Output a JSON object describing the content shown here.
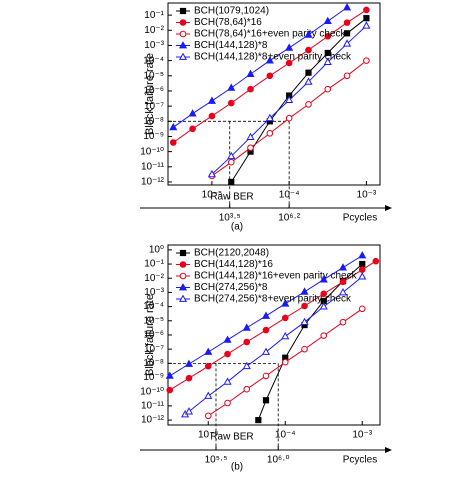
{
  "chart_data": [
    {
      "type": "line",
      "caption": "(a)",
      "ylabel": "Block failure rate",
      "xlabel": "Raw BER",
      "x2label": "Pcycles",
      "log_x": true,
      "log_y": true,
      "xlim": [
        2.7e-06,
        0.0015
      ],
      "ylim": [
        6.3e-13,
        0.63
      ],
      "xticks": [
        {
          "value": 1e-05,
          "label": "10⁻⁵"
        },
        {
          "value": 0.0001,
          "label": "10⁻⁴"
        },
        {
          "value": 0.001,
          "label": "10⁻³"
        }
      ],
      "yticks": [
        {
          "value": 0.1,
          "label": "10⁻¹"
        },
        {
          "value": 0.01,
          "label": "10⁻²"
        },
        {
          "value": 0.001,
          "label": "10⁻³"
        },
        {
          "value": 0.0001,
          "label": "10⁻⁴"
        },
        {
          "value": 1e-05,
          "label": "10⁻⁵"
        },
        {
          "value": 1e-06,
          "label": "10⁻⁶"
        },
        {
          "value": 1e-07,
          "label": "10⁻⁷"
        },
        {
          "value": 1e-08,
          "label": "10⁻⁸"
        },
        {
          "value": 1e-09,
          "label": "10⁻⁹"
        },
        {
          "value": 1e-10,
          "label": "10⁻¹⁰"
        },
        {
          "value": 1e-11,
          "label": "10⁻¹¹"
        },
        {
          "value": 1e-12,
          "label": "10⁻¹²"
        }
      ],
      "x2ticks": [
        {
          "value": 3162,
          "label": "10³·⁵"
        },
        {
          "value": 1584893,
          "label": "10⁶·²"
        }
      ],
      "reference_lines": {
        "y": 1e-08,
        "x": [
          1.7e-05,
          0.0001
        ]
      },
      "legend": "upper left",
      "series": [
        {
          "name": "BCH(1079,1024)",
          "color": "#000000",
          "marker": "square",
          "filled": true,
          "x": [
            1.78e-05,
            3.16e-05,
            5.62e-05,
            0.0001,
            0.000178,
            0.000316,
            0.000562,
            0.001
          ],
          "values": [
            1e-12,
            1e-10,
            1e-08,
            5e-07,
            1.6e-05,
            0.00032,
            0.0063,
            0.063
          ]
        },
        {
          "name": "BCH(78,64)*16",
          "color": "#e8001c",
          "marker": "circle",
          "filled": true,
          "x": [
            3.16e-06,
            5.62e-06,
            1e-05,
            1.78e-05,
            3.16e-05,
            5.62e-05,
            0.0001,
            0.000178,
            0.000316,
            0.000562,
            0.001
          ],
          "values": [
            4e-10,
            3.2e-09,
            2.2e-08,
            1.6e-07,
            1.3e-06,
            1e-05,
            7e-05,
            0.0005,
            0.004,
            0.032,
            0.22
          ]
        },
        {
          "name": "BCH(78,64)*16+even parity check",
          "color": "#e8001c",
          "marker": "circle",
          "filled": false,
          "x": [
            1e-05,
            1.78e-05,
            3.16e-05,
            5.62e-05,
            0.0001,
            0.000178,
            0.000316,
            0.000562,
            0.001
          ],
          "values": [
            2.5e-12,
            2e-11,
            1.8e-10,
            1.6e-09,
            1.6e-08,
            1.3e-07,
            1.3e-06,
            1e-05,
            0.0001
          ]
        },
        {
          "name": "BCH(144,128)*8",
          "color": "#1a1aff",
          "marker": "triangle",
          "filled": true,
          "x": [
            3.16e-06,
            5.62e-06,
            1e-05,
            1.78e-05,
            3.16e-05,
            5.62e-05,
            0.0001,
            0.000178,
            0.000316,
            0.000562
          ],
          "values": [
            4e-09,
            3.2e-08,
            2.2e-07,
            1.6e-06,
            1.3e-05,
            0.0001,
            0.0007,
            0.005,
            0.04,
            0.32
          ]
        },
        {
          "name": "BCH(144,128)*8+even parity check",
          "color": "#1a1aff",
          "marker": "triangle",
          "filled": false,
          "x": [
            1e-05,
            1.78e-05,
            3.16e-05,
            5.62e-05,
            0.0001,
            0.000178,
            0.000316,
            0.000562,
            0.001
          ],
          "values": [
            3.2e-12,
            5e-11,
            9e-10,
            1.6e-08,
            2.5e-07,
            4e-06,
            8e-05,
            0.0013,
            0.02
          ]
        }
      ]
    },
    {
      "type": "line",
      "caption": "(b)",
      "ylabel": "Block failure rate",
      "xlabel": "Raw BER",
      "x2label": "Pcycles",
      "log_x": true,
      "log_y": true,
      "xlim": [
        3e-06,
        0.0017
      ],
      "ylim": [
        4.5e-13,
        2.2
      ],
      "xticks": [
        {
          "value": 1e-05,
          "label": "10⁻⁵"
        },
        {
          "value": 0.0001,
          "label": "10⁻⁴"
        },
        {
          "value": 0.001,
          "label": "10⁻³"
        }
      ],
      "yticks": [
        {
          "value": 1,
          "label": "10⁰"
        },
        {
          "value": 0.1,
          "label": "10⁻¹"
        },
        {
          "value": 0.01,
          "label": "10⁻²"
        },
        {
          "value": 0.001,
          "label": "10⁻³"
        },
        {
          "value": 0.0001,
          "label": "10⁻⁴"
        },
        {
          "value": 1e-05,
          "label": "10⁻⁵"
        },
        {
          "value": 1e-06,
          "label": "10⁻⁶"
        },
        {
          "value": 1e-07,
          "label": "10⁻⁷"
        },
        {
          "value": 1e-08,
          "label": "10⁻⁸"
        },
        {
          "value": 1e-09,
          "label": "10⁻⁹"
        },
        {
          "value": 1e-10,
          "label": "10⁻¹⁰"
        },
        {
          "value": 1e-11,
          "label": "10⁻¹¹"
        },
        {
          "value": 1e-12,
          "label": "10⁻¹²"
        }
      ],
      "x2ticks": [
        {
          "value": 316228,
          "label": "10⁵·⁵"
        },
        {
          "value": 1000000,
          "label": "10⁶·⁰"
        }
      ],
      "reference_lines": {
        "y": 1e-08,
        "x": [
          1.26e-05,
          8.1e-05
        ]
      },
      "legend": "upper left",
      "series": [
        {
          "name": "BCH(2120,2048)",
          "color": "#000000",
          "marker": "square",
          "filled": true,
          "x": [
            4.47e-05,
            5.62e-05,
            0.0001,
            0.000178,
            0.000316,
            0.000562,
            0.001
          ],
          "values": [
            1e-12,
            2.5e-11,
            2.5e-08,
            5e-06,
            0.00025,
            0.0063,
            0.1
          ]
        },
        {
          "name": "BCH(144,128)*16",
          "color": "#e8001c",
          "marker": "circle",
          "filled": true,
          "x": [
            3.16e-06,
            5.62e-06,
            1e-05,
            1.78e-05,
            3.16e-05,
            5.62e-05,
            0.0001,
            0.000178,
            0.000316,
            0.000562,
            0.001,
            0.0015
          ],
          "values": [
            1.3e-10,
            9e-10,
            6.3e-09,
            4.5e-08,
            3.2e-07,
            2.2e-06,
            1.6e-05,
            0.00011,
            0.0008,
            0.0056,
            0.04,
            0.16
          ]
        },
        {
          "name": "BCH(144,128)*16+even parity check",
          "color": "#e8001c",
          "marker": "circle",
          "filled": false,
          "x": [
            1e-05,
            1.78e-05,
            3.16e-05,
            5.62e-05,
            0.0001,
            0.000178,
            0.000316,
            0.000562,
            0.001
          ],
          "values": [
            2e-12,
            1.6e-11,
            1.5e-10,
            1.3e-09,
            1.2e-08,
            1e-07,
            9e-07,
            8e-06,
            7e-05
          ]
        },
        {
          "name": "BCH(274,256)*8",
          "color": "#1a1aff",
          "marker": "triangle",
          "filled": true,
          "x": [
            3.16e-06,
            5.62e-06,
            1e-05,
            1.78e-05,
            3.16e-05,
            5.62e-05,
            0.0001,
            0.000178,
            0.000316,
            0.000562,
            0.001
          ],
          "values": [
            1.3e-09,
            9e-09,
            6.3e-08,
            4.5e-07,
            3.2e-06,
            2.2e-05,
            0.00016,
            0.0011,
            0.008,
            0.056,
            0.4
          ]
        },
        {
          "name": "BCH(274,256)*8+even parity check",
          "color": "#1a1aff",
          "marker": "triangle",
          "filled": false,
          "x": [
            5e-06,
            5.62e-06,
            1e-05,
            1.78e-05,
            3.16e-05,
            5.62e-05,
            0.0001,
            0.000178,
            0.000316,
            0.000562,
            0.001
          ],
          "values": [
            2.5e-12,
            4e-12,
            5e-11,
            5e-10,
            6.3e-09,
            6.3e-08,
            8e-07,
            8e-06,
            0.0001,
            0.001,
            0.013
          ]
        }
      ]
    }
  ]
}
